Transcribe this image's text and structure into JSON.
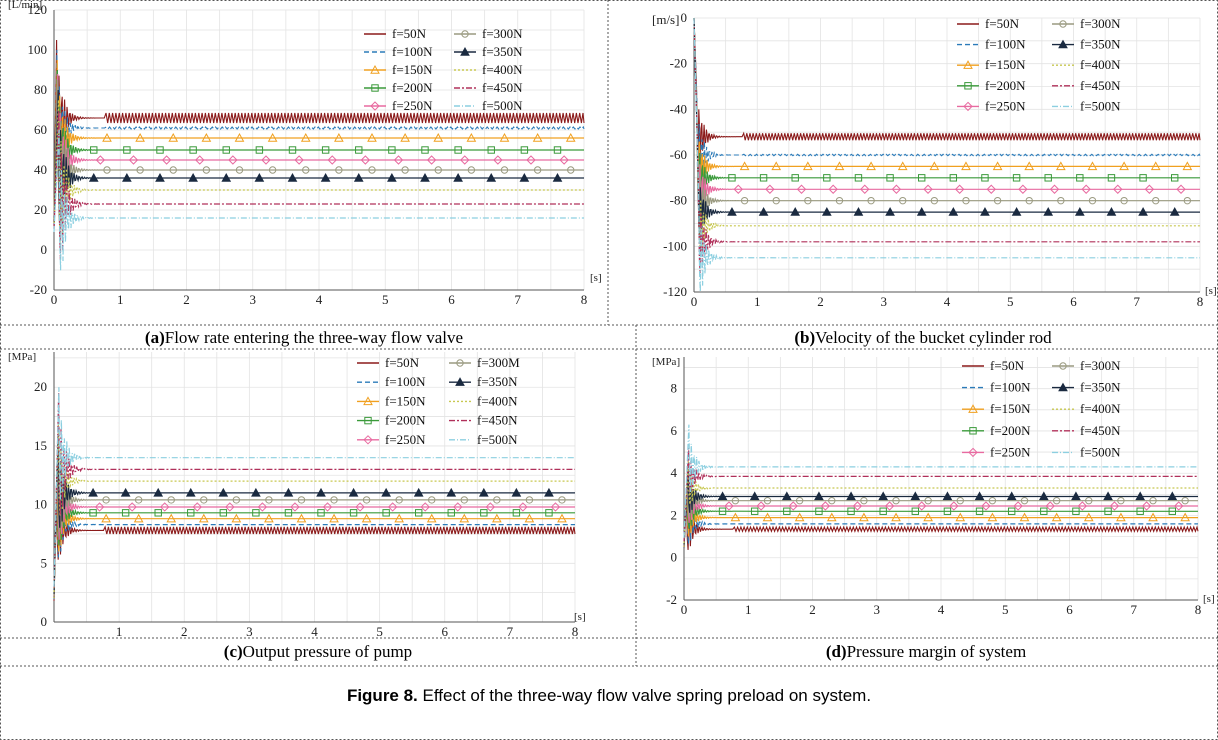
{
  "chart_data": [
    {
      "type": "line",
      "panel_label": "(a)",
      "caption": "Flow rate entering the three-way flow valve",
      "yunit": "[L/min]",
      "xunit": "[s]",
      "xlim": [
        0,
        8
      ],
      "ylim": [
        -20,
        120
      ],
      "xticks": [
        0,
        1,
        2,
        3,
        4,
        5,
        6,
        7,
        8
      ],
      "yticks": [
        -20,
        0,
        20,
        40,
        60,
        80,
        100,
        120
      ],
      "legend_cols": 2,
      "legend_position": "top-right",
      "series": [
        {
          "name": "f=50N",
          "steady": 66,
          "peak": 105,
          "color": "#8b1a1a",
          "dash": "",
          "marker": "",
          "osc": 2.5
        },
        {
          "name": "f=100N",
          "steady": 61,
          "peak": 100,
          "color": "#2b7bb9",
          "dash": "5,3",
          "marker": "",
          "osc": 0.5
        },
        {
          "name": "f=150N",
          "steady": 56,
          "peak": 95,
          "color": "#f0a020",
          "dash": "",
          "marker": "triangle",
          "osc": 0
        },
        {
          "name": "f=200N",
          "steady": 50,
          "peak": 90,
          "color": "#3a9a3a",
          "dash": "",
          "marker": "square",
          "osc": 0
        },
        {
          "name": "f=250N",
          "steady": 45,
          "peak": 88,
          "color": "#e86aa0",
          "dash": "",
          "marker": "diamond",
          "osc": 0
        },
        {
          "name": "f=300N",
          "steady": 40,
          "peak": 85,
          "color": "#9a9a80",
          "dash": "",
          "marker": "circle",
          "osc": 0
        },
        {
          "name": "f=350N",
          "steady": 36,
          "peak": 80,
          "color": "#1a2a40",
          "dash": "",
          "marker": "triangle-filled",
          "osc": 0
        },
        {
          "name": "f=400N",
          "steady": 30,
          "peak": 75,
          "color": "#c8c850",
          "dash": "2,2",
          "marker": "",
          "osc": 0
        },
        {
          "name": "f=450N",
          "steady": 23,
          "peak": 70,
          "color": "#b0305a",
          "dash": "6,2,2,2",
          "marker": "",
          "osc": 0
        },
        {
          "name": "f=500N",
          "steady": 16,
          "peak": 60,
          "color": "#8ccfe0",
          "dash": "6,2,1,2",
          "marker": "",
          "osc": 0
        }
      ]
    },
    {
      "type": "line",
      "panel_label": "(b)",
      "caption": "Velocity of the bucket cylinder rod",
      "yunit": "[m/s]",
      "xunit": "[s]",
      "xlim": [
        0,
        8
      ],
      "ylim": [
        -120,
        0
      ],
      "xticks": [
        0,
        1,
        2,
        3,
        4,
        5,
        6,
        7,
        8
      ],
      "yticks": [
        -120,
        -100,
        -80,
        -60,
        -40,
        -20,
        0
      ],
      "legend_cols": 2,
      "legend_position": "top-right",
      "series": [
        {
          "name": "f=50N",
          "steady": -52,
          "peak": -30,
          "color": "#8b1a1a",
          "dash": "",
          "marker": "",
          "osc": 1.5
        },
        {
          "name": "f=100N",
          "steady": -60,
          "peak": -35,
          "color": "#2b7bb9",
          "dash": "5,3",
          "marker": "",
          "osc": 0.3
        },
        {
          "name": "f=150N",
          "steady": -65,
          "peak": -45,
          "color": "#f0a020",
          "dash": "",
          "marker": "triangle",
          "osc": 0
        },
        {
          "name": "f=200N",
          "steady": -70,
          "peak": -50,
          "color": "#3a9a3a",
          "dash": "",
          "marker": "square",
          "osc": 0
        },
        {
          "name": "f=250N",
          "steady": -75,
          "peak": -55,
          "color": "#e86aa0",
          "dash": "",
          "marker": "diamond",
          "osc": 0
        },
        {
          "name": "f=300N",
          "steady": -80,
          "peak": -60,
          "color": "#9a9a80",
          "dash": "",
          "marker": "circle",
          "osc": 0
        },
        {
          "name": "f=350N",
          "steady": -85,
          "peak": -65,
          "color": "#1a2a40",
          "dash": "",
          "marker": "triangle-filled",
          "osc": 0
        },
        {
          "name": "f=400N",
          "steady": -91,
          "peak": -70,
          "color": "#c8c850",
          "dash": "2,2",
          "marker": "",
          "osc": 0
        },
        {
          "name": "f=450N",
          "steady": -98,
          "peak": -75,
          "color": "#b0305a",
          "dash": "6,2,2,2",
          "marker": "",
          "osc": 0
        },
        {
          "name": "f=500N",
          "steady": -105,
          "peak": -80,
          "color": "#8ccfe0",
          "dash": "6,2,1,2",
          "marker": "",
          "osc": 0
        }
      ]
    },
    {
      "type": "line",
      "panel_label": "(c)",
      "caption": "Output pressure of pump",
      "yunit": "[MPa]",
      "xunit": "[s]",
      "xlim": [
        0,
        8
      ],
      "ylim": [
        0,
        23
      ],
      "xticks": [
        1,
        2,
        3,
        4,
        5,
        6,
        7,
        8
      ],
      "yticks": [
        0,
        5,
        10,
        15,
        20
      ],
      "legend_cols": 2,
      "legend_position": "top-right",
      "series": [
        {
          "name": "f=50N",
          "steady": 7.8,
          "peak": 12,
          "color": "#8b1a1a",
          "dash": "",
          "marker": "",
          "osc": 0.3
        },
        {
          "name": "f=100N",
          "steady": 8.3,
          "peak": 13,
          "color": "#2b7bb9",
          "dash": "5,3",
          "marker": "",
          "osc": 0
        },
        {
          "name": "f=150N",
          "steady": 8.8,
          "peak": 13.5,
          "color": "#f0a020",
          "dash": "",
          "marker": "triangle",
          "osc": 0
        },
        {
          "name": "f=200N",
          "steady": 9.3,
          "peak": 14,
          "color": "#3a9a3a",
          "dash": "",
          "marker": "square",
          "osc": 0
        },
        {
          "name": "f=250N",
          "steady": 9.8,
          "peak": 14.5,
          "color": "#e86aa0",
          "dash": "",
          "marker": "diamond",
          "osc": 0
        },
        {
          "name": "f=300M",
          "steady": 10.4,
          "peak": 15,
          "color": "#9a9a80",
          "dash": "",
          "marker": "circle",
          "osc": 0
        },
        {
          "name": "f=350N",
          "steady": 11.0,
          "peak": 16,
          "color": "#1a2a40",
          "dash": "",
          "marker": "triangle-filled",
          "osc": 0
        },
        {
          "name": "f=400N",
          "steady": 12.0,
          "peak": 17,
          "color": "#c8c850",
          "dash": "2,2",
          "marker": "",
          "osc": 0
        },
        {
          "name": "f=450N",
          "steady": 13.0,
          "peak": 19.5,
          "color": "#b0305a",
          "dash": "6,2,2,2",
          "marker": "",
          "osc": 0
        },
        {
          "name": "f=500N",
          "steady": 14.0,
          "peak": 20,
          "color": "#8ccfe0",
          "dash": "6,2,1,2",
          "marker": "",
          "osc": 0
        }
      ]
    },
    {
      "type": "line",
      "panel_label": "(d)",
      "caption": "Pressure margin of system",
      "yunit": "[MPa]",
      "xunit": "[s]",
      "xlim": [
        0,
        8
      ],
      "ylim": [
        -2,
        9.5
      ],
      "xticks": [
        0,
        1,
        2,
        3,
        4,
        5,
        6,
        7,
        8
      ],
      "yticks": [
        -2,
        0,
        2,
        4,
        6,
        8
      ],
      "legend_cols": 2,
      "legend_position": "top-right",
      "series": [
        {
          "name": "f=50N",
          "steady": 1.35,
          "peak": 3,
          "color": "#8b1a1a",
          "dash": "",
          "marker": "",
          "osc": 0.1
        },
        {
          "name": "f=100N",
          "steady": 1.6,
          "peak": 3.2,
          "color": "#2b7bb9",
          "dash": "5,3",
          "marker": "",
          "osc": 0
        },
        {
          "name": "f=150N",
          "steady": 1.9,
          "peak": 3.4,
          "color": "#f0a020",
          "dash": "",
          "marker": "triangle",
          "osc": 0
        },
        {
          "name": "f=200N",
          "steady": 2.2,
          "peak": 3.6,
          "color": "#3a9a3a",
          "dash": "",
          "marker": "square",
          "osc": 0
        },
        {
          "name": "f=250N",
          "steady": 2.45,
          "peak": 3.8,
          "color": "#e86aa0",
          "dash": "",
          "marker": "diamond",
          "osc": 0
        },
        {
          "name": "f=300N",
          "steady": 2.7,
          "peak": 4.0,
          "color": "#9a9a80",
          "dash": "",
          "marker": "circle",
          "osc": 0
        },
        {
          "name": "f=350N",
          "steady": 2.9,
          "peak": 4.2,
          "color": "#1a2a40",
          "dash": "",
          "marker": "triangle-filled",
          "osc": 0
        },
        {
          "name": "f=400N",
          "steady": 3.3,
          "peak": 4.6,
          "color": "#c8c850",
          "dash": "2,2",
          "marker": "",
          "osc": 0
        },
        {
          "name": "f=450N",
          "steady": 3.85,
          "peak": 5.2,
          "color": "#b0305a",
          "dash": "6,2,2,2",
          "marker": "",
          "osc": 0
        },
        {
          "name": "f=500N",
          "steady": 4.3,
          "peak": 6.3,
          "color": "#8ccfe0",
          "dash": "6,2,1,2",
          "marker": "",
          "osc": 0
        }
      ]
    }
  ],
  "figure_caption": {
    "label": "Figure 8.",
    "text": " Effect of the three-way flow valve spring preload on system."
  }
}
